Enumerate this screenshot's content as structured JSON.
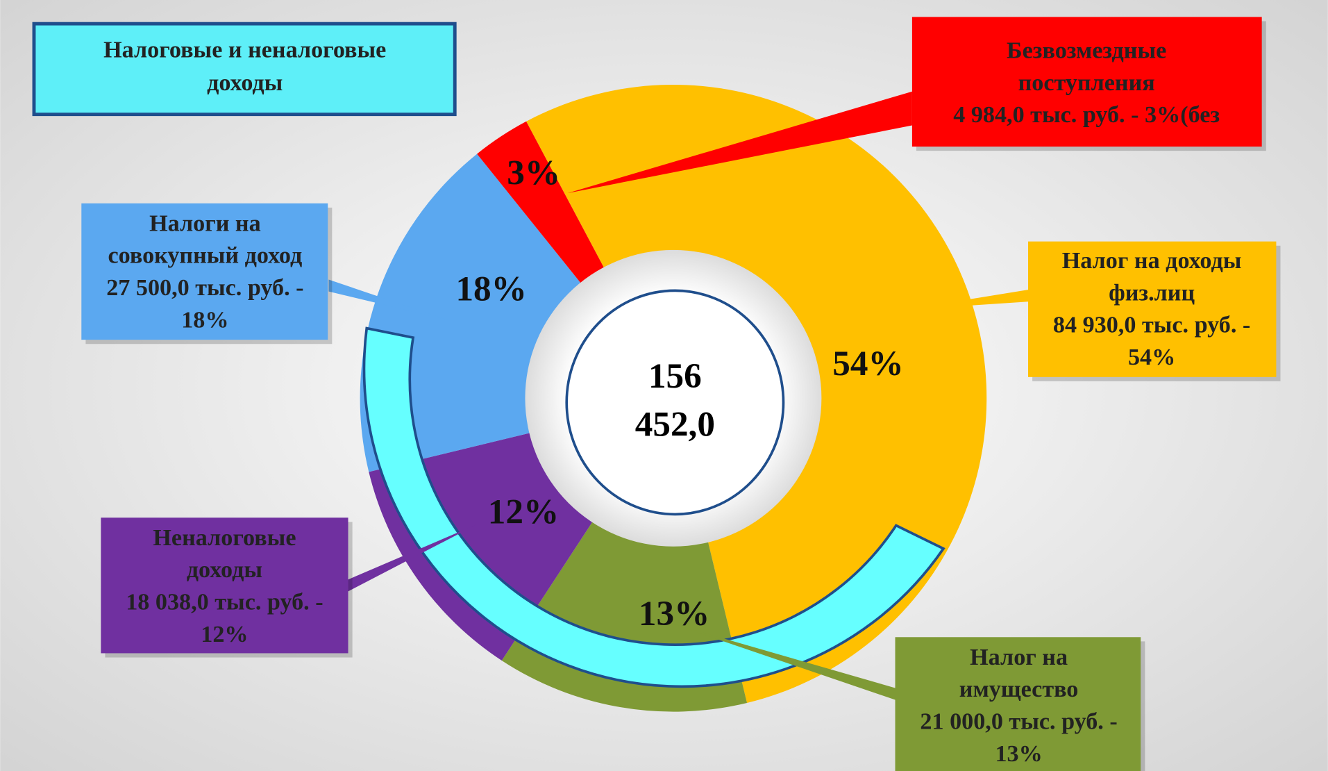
{
  "chart_data": {
    "type": "pie",
    "donut": true,
    "title": [
      "Налоговые и неналоговые",
      "доходы"
    ],
    "center_label": [
      "156",
      "452,0"
    ],
    "values": [
      54,
      13,
      12,
      18,
      3
    ],
    "value_labels": [
      "54%",
      "13%",
      "12%",
      "18%",
      "3%"
    ],
    "colors": [
      "#FFC000",
      "#7F9A35",
      "#7030A0",
      "#5BA8F0",
      "#FF0000"
    ],
    "callouts": [
      {
        "lines": [
          "Налог на доходы",
          "физ.лиц",
          "84 930,0 тыс. руб. -",
          "54%"
        ]
      },
      {
        "lines": [
          "Налог на",
          "имущество",
          "21 000,0 тыс. руб. -",
          "13%"
        ]
      },
      {
        "lines": [
          "Неналоговые",
          "доходы",
          "18 038,0 тыс. руб. -",
          "12%"
        ]
      },
      {
        "lines": [
          "Налоги на",
          "совокупный доход",
          "27 500,0 тыс. руб. -",
          "18%"
        ]
      },
      {
        "lines": [
          "Безвозмездные",
          "поступления",
          "4 984,0 тыс. руб. - 3%(без"
        ]
      }
    ]
  }
}
